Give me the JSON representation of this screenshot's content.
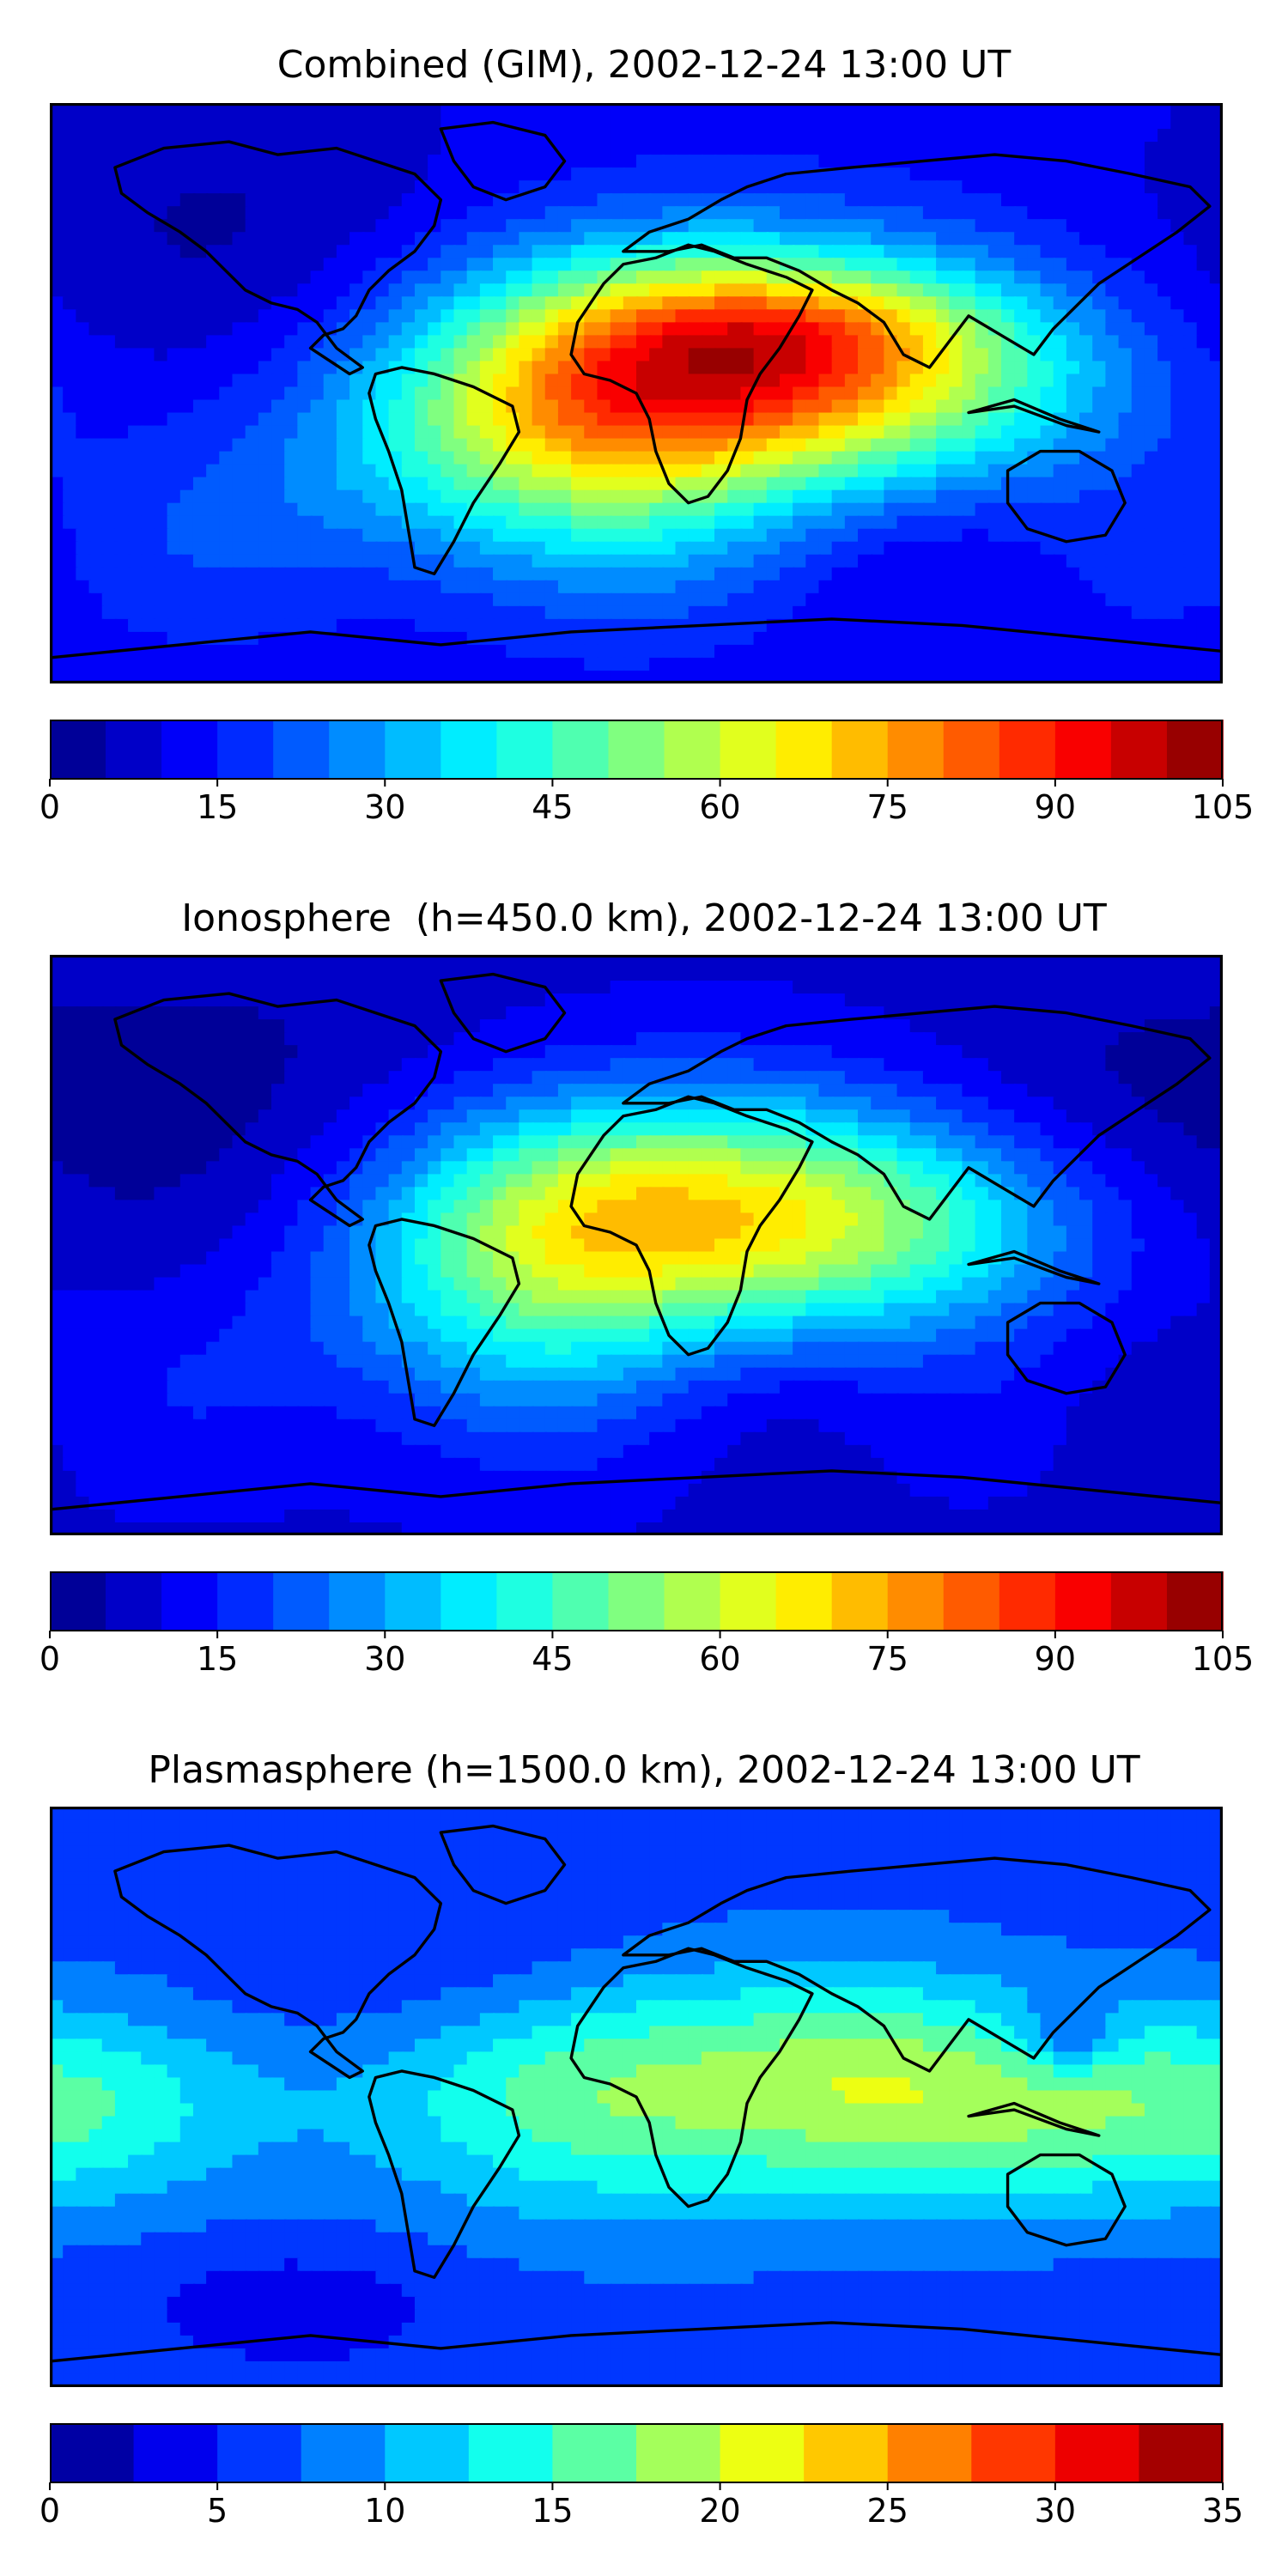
{
  "panels": [
    {
      "id": "combined",
      "title": "Combined (GIM), 2002-12-24 13:00 UT",
      "colorbar": {
        "min": 0,
        "max": 105,
        "step": 5,
        "ticks": [
          "0",
          "15",
          "30",
          "45",
          "60",
          "75",
          "90",
          "105"
        ]
      }
    },
    {
      "id": "ionosphere",
      "title": "Ionosphere  (h=450.0 km), 2002-12-24 13:00 UT",
      "colorbar": {
        "min": 0,
        "max": 105,
        "step": 5,
        "ticks": [
          "0",
          "15",
          "30",
          "45",
          "60",
          "75",
          "90",
          "105"
        ]
      }
    },
    {
      "id": "plasmasphere",
      "title": "Plasmasphere (h=1500.0 km), 2002-12-24 13:00 UT",
      "colorbar": {
        "min": 0,
        "max": 35,
        "step": 2.5,
        "ticks": [
          "0",
          "5",
          "10",
          "15",
          "20",
          "25",
          "30",
          "35"
        ]
      }
    }
  ],
  "colormap": "jet",
  "coastline_color": "#000000"
}
